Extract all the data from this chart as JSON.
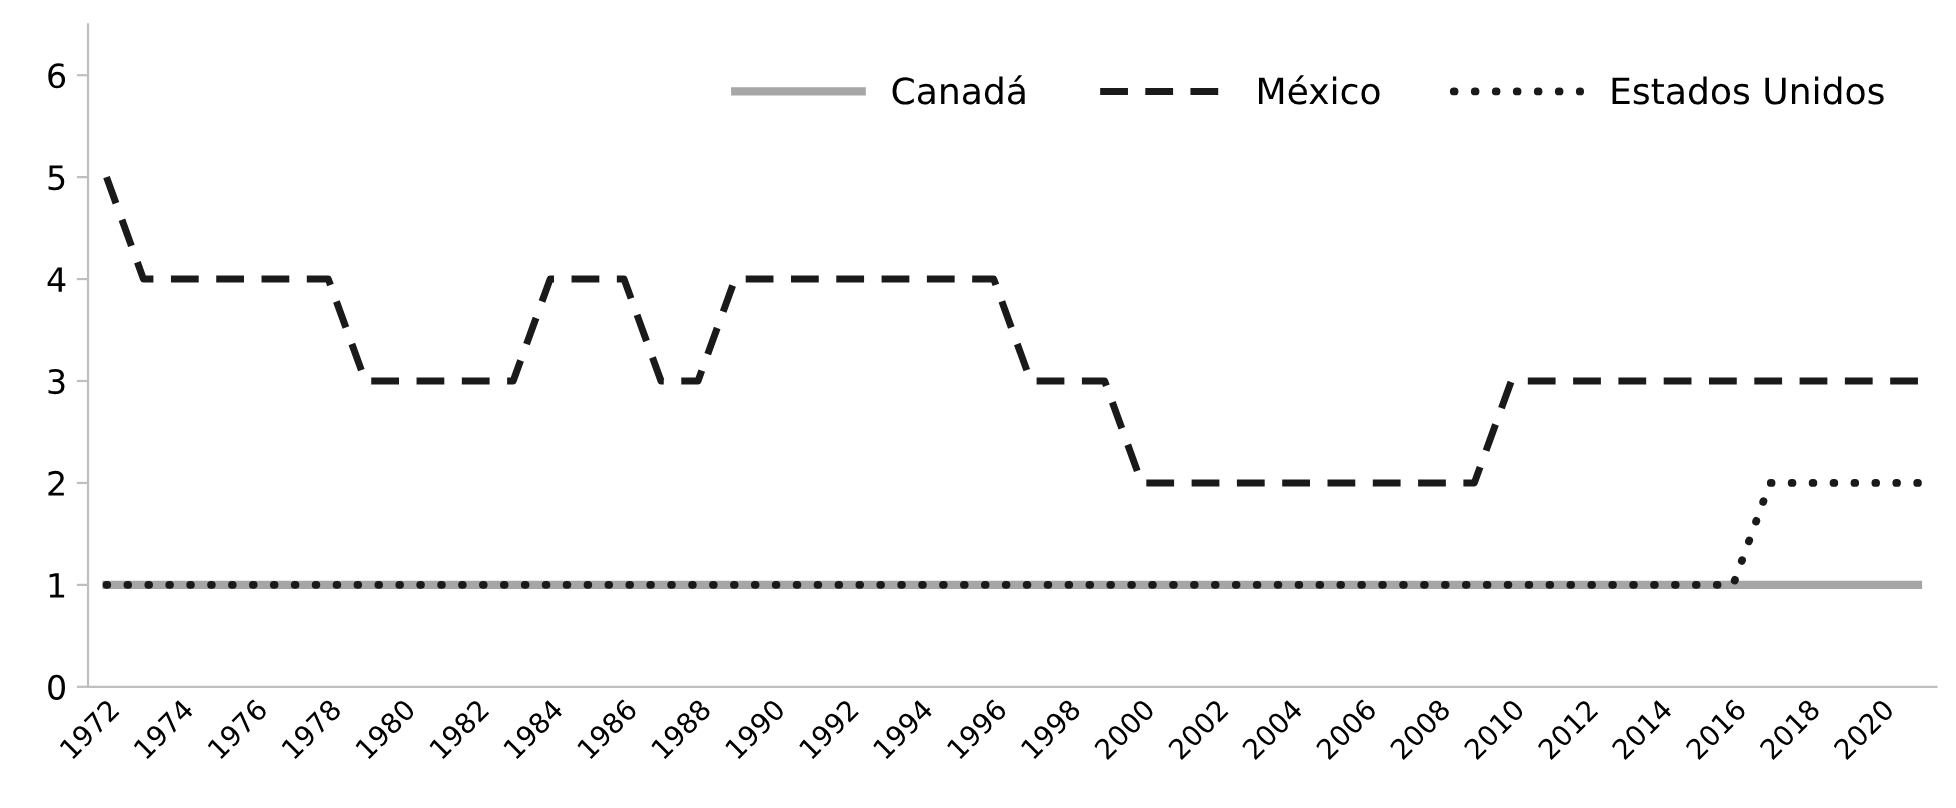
{
  "chart_data": {
    "type": "line",
    "categories": [
      "1972",
      null,
      "1974",
      null,
      "1976",
      null,
      "1978",
      null,
      "1980",
      null,
      "1982",
      null,
      "1984",
      null,
      "1986",
      null,
      "1988",
      null,
      "1990",
      null,
      "1992",
      null,
      "1994",
      null,
      "1996",
      null,
      "1998",
      null,
      "2000",
      null,
      "2002",
      null,
      "2004",
      null,
      "2006",
      null,
      "2008",
      null,
      "2010",
      null,
      "2012",
      null,
      "2014",
      null,
      "2016",
      null,
      "2018",
      null,
      "2020",
      null
    ],
    "series": [
      {
        "name": "Canadá",
        "color": "#a6a6a6",
        "line_style": "solid",
        "values": [
          1,
          1,
          1,
          1,
          1,
          1,
          1,
          1,
          1,
          1,
          1,
          1,
          1,
          1,
          1,
          1,
          1,
          1,
          1,
          1,
          1,
          1,
          1,
          1,
          1,
          1,
          1,
          1,
          1,
          1,
          1,
          1,
          1,
          1,
          1,
          1,
          1,
          1,
          1,
          1,
          1,
          1,
          1,
          1,
          1,
          1,
          1,
          1,
          1,
          1
        ]
      },
      {
        "name": "México",
        "color": "#1a1a1a",
        "line_style": "dashed",
        "values": [
          5,
          4,
          4,
          4,
          4,
          4,
          4,
          3,
          3,
          3,
          3,
          3,
          4,
          4,
          4,
          3,
          3,
          4,
          4,
          4,
          4,
          4,
          4,
          4,
          4,
          3,
          3,
          3,
          2,
          2,
          2,
          2,
          2,
          2,
          2,
          2,
          2,
          2,
          3,
          3,
          3,
          3,
          3,
          3,
          3,
          3,
          3,
          3,
          3,
          3
        ]
      },
      {
        "name": "Estados Unidos",
        "color": "#1a1a1a",
        "line_style": "dotted",
        "values": [
          1,
          1,
          1,
          1,
          1,
          1,
          1,
          1,
          1,
          1,
          1,
          1,
          1,
          1,
          1,
          1,
          1,
          1,
          1,
          1,
          1,
          1,
          1,
          1,
          1,
          1,
          1,
          1,
          1,
          1,
          1,
          1,
          1,
          1,
          1,
          1,
          1,
          1,
          1,
          1,
          1,
          1,
          1,
          1,
          1,
          2,
          2,
          2,
          2,
          2
        ]
      }
    ],
    "ylim": [
      0,
      6.5
    ],
    "yticks": [
      0,
      1,
      2,
      3,
      4,
      5,
      6
    ],
    "grid": false,
    "legend": "top right",
    "marker": "none"
  }
}
